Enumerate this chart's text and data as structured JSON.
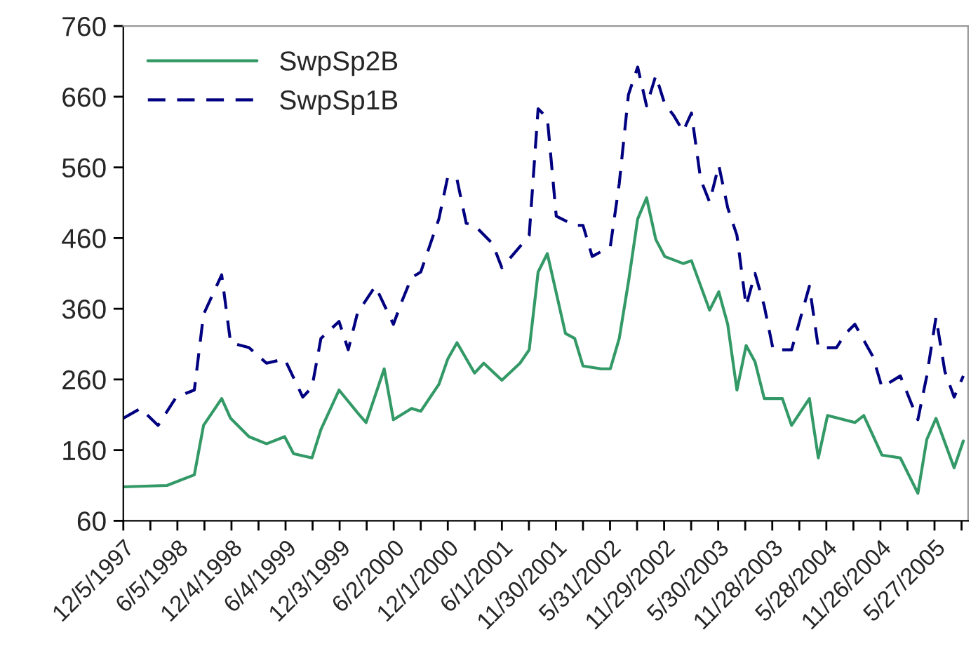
{
  "chart_data": {
    "type": "line",
    "legend": "top left",
    "grid": false,
    "xlim": [
      "1997-12-05",
      "2005-09-17"
    ],
    "ylim": [
      60,
      760
    ],
    "yticks": [
      60,
      160,
      260,
      360,
      460,
      560,
      660,
      760
    ],
    "xticks": [
      {
        "value": "1997-12-05",
        "label": "12/5/1997"
      },
      {
        "value": "1998-03-06",
        "label": null
      },
      {
        "value": "1998-06-05",
        "label": "6/5/1998"
      },
      {
        "value": "1998-09-04",
        "label": null
      },
      {
        "value": "1998-12-04",
        "label": "12/4/1998"
      },
      {
        "value": "1999-03-05",
        "label": null
      },
      {
        "value": "1999-06-04",
        "label": "6/4/1999"
      },
      {
        "value": "1999-09-03",
        "label": null
      },
      {
        "value": "1999-12-03",
        "label": "12/3/1999"
      },
      {
        "value": "2000-03-03",
        "label": null
      },
      {
        "value": "2000-06-02",
        "label": "6/2/2000"
      },
      {
        "value": "2000-09-01",
        "label": null
      },
      {
        "value": "2000-12-01",
        "label": "12/1/2000"
      },
      {
        "value": "2001-03-02",
        "label": null
      },
      {
        "value": "2001-06-01",
        "label": "6/1/2001"
      },
      {
        "value": "2001-08-31",
        "label": null
      },
      {
        "value": "2001-11-30",
        "label": "11/30/2001"
      },
      {
        "value": "2002-03-01",
        "label": null
      },
      {
        "value": "2002-05-31",
        "label": "5/31/2002"
      },
      {
        "value": "2002-08-30",
        "label": null
      },
      {
        "value": "2002-11-29",
        "label": "11/29/2002"
      },
      {
        "value": "2003-02-28",
        "label": null
      },
      {
        "value": "2003-05-30",
        "label": "5/30/2003"
      },
      {
        "value": "2003-08-29",
        "label": null
      },
      {
        "value": "2003-11-28",
        "label": "11/28/2003"
      },
      {
        "value": "2004-02-27",
        "label": null
      },
      {
        "value": "2004-05-28",
        "label": "5/28/2004"
      },
      {
        "value": "2004-08-27",
        "label": null
      },
      {
        "value": "2004-11-26",
        "label": "11/26/2004"
      },
      {
        "value": "2005-02-25",
        "label": null
      },
      {
        "value": "2005-05-27",
        "label": "5/27/2005"
      },
      {
        "value": "2005-08-26",
        "label": null
      }
    ],
    "series": [
      {
        "name": "SwpSp2B",
        "color": "#339966",
        "line_style": "solid",
        "x": [
          "1997-12-05",
          "1998-05",
          "1998-08",
          "1998-09",
          "1998-11",
          "1998-12",
          "1999-02",
          "1999-04",
          "1999-06",
          "1999-07",
          "1999-09",
          "1999-10",
          "1999-12",
          "2000-02",
          "2000-03",
          "2000-05",
          "2000-06",
          "2000-08",
          "2000-09",
          "2000-11",
          "2000-12",
          "2001-01",
          "2001-03",
          "2001-04",
          "2001-06",
          "2001-08",
          "2001-09",
          "2001-10",
          "2001-11",
          "2002-01",
          "2002-02",
          "2002-03",
          "2002-05",
          "2002-06",
          "2002-07",
          "2002-08",
          "2002-09",
          "2002-10",
          "2002-11",
          "2002-12",
          "2003-02",
          "2003-03",
          "2003-05",
          "2003-06",
          "2003-07",
          "2003-08",
          "2003-09",
          "2003-10",
          "2003-11",
          "2004-01",
          "2004-02",
          "2004-04",
          "2004-05",
          "2004-06",
          "2004-09",
          "2004-10",
          "2004-12",
          "2005-02",
          "2005-04",
          "2005-05",
          "2005-06",
          "2005-08",
          "2005-09"
        ],
        "values": [
          108,
          110,
          125,
          195,
          233,
          205,
          179,
          169,
          179,
          155,
          149,
          189,
          245,
          213,
          199,
          275,
          203,
          219,
          215,
          253,
          289,
          312,
          269,
          283,
          259,
          283,
          302,
          412,
          438,
          325,
          318,
          279,
          275,
          275,
          318,
          398,
          487,
          517,
          458,
          434,
          424,
          428,
          358,
          384,
          338,
          245,
          308,
          285,
          233,
          233,
          195,
          233,
          149,
          209,
          199,
          209,
          153,
          149,
          99,
          175,
          205,
          135,
          173
        ]
      },
      {
        "name": "SwpSp1B",
        "color": "#000080",
        "line_style": "dashed",
        "x": [
          "1997-12-05",
          "1998-02",
          "1998-04",
          "1998-06",
          "1998-08",
          "1998-09",
          "1998-11",
          "1998-12",
          "1999-02",
          "1999-04",
          "1999-06",
          "1999-08",
          "1999-09",
          "1999-10",
          "1999-12",
          "2000-01",
          "2000-02",
          "2000-04",
          "2000-06",
          "2000-07",
          "2000-08",
          "2000-09",
          "2000-11",
          "2000-12",
          "2001-01",
          "2001-02",
          "2001-03",
          "2001-05",
          "2001-06",
          "2001-08",
          "2001-09",
          "2001-10",
          "2001-11",
          "2001-12",
          "2002-02",
          "2002-03",
          "2002-04",
          "2002-06",
          "2002-07",
          "2002-08",
          "2002-09",
          "2002-10",
          "2002-11",
          "2002-12",
          "2003-01",
          "2003-02",
          "2003-03",
          "2003-04",
          "2003-05",
          "2003-06",
          "2003-07",
          "2003-08",
          "2003-09",
          "2003-10",
          "2003-11",
          "2003-12",
          "2004-02",
          "2004-04",
          "2004-05",
          "2004-07",
          "2004-08",
          "2004-09",
          "2004-11",
          "2004-12",
          "2005-02",
          "2005-04",
          "2005-05",
          "2005-06",
          "2005-07",
          "2005-08",
          "2005-09"
        ],
        "values": [
          205,
          219,
          195,
          235,
          245,
          352,
          408,
          312,
          305,
          283,
          289,
          235,
          249,
          318,
          342,
          302,
          354,
          392,
          338,
          372,
          404,
          412,
          487,
          547,
          543,
          481,
          478,
          452,
          418,
          448,
          464,
          643,
          630,
          491,
          478,
          478,
          434,
          448,
          537,
          663,
          702,
          647,
          690,
          650,
          633,
          611,
          637,
          543,
          511,
          563,
          503,
          464,
          364,
          410,
          364,
          302,
          302,
          392,
          305,
          305,
          325,
          338,
          292,
          249,
          265,
          203,
          265,
          348,
          271,
          235,
          265
        ]
      }
    ]
  }
}
